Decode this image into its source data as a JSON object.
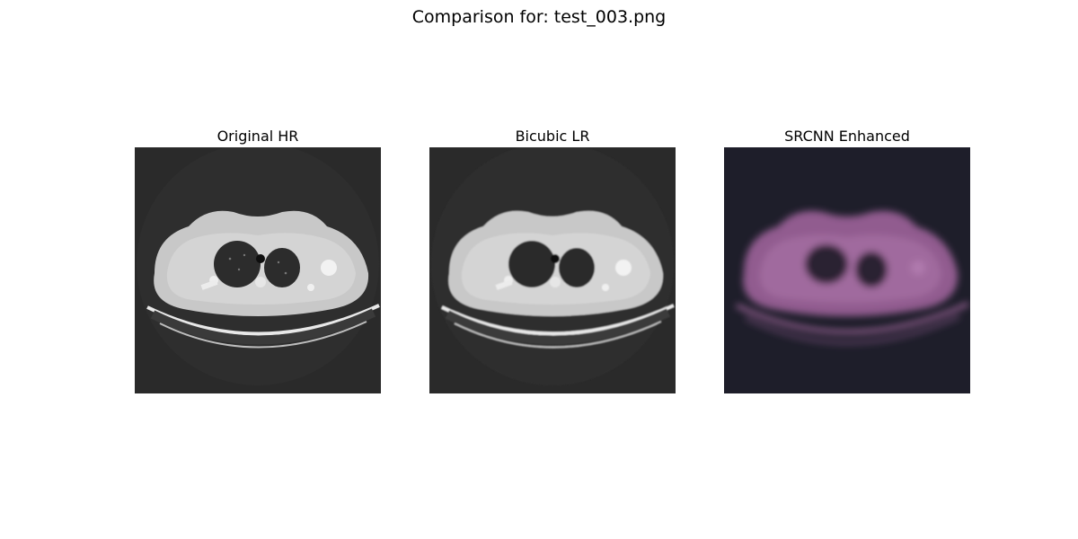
{
  "figure": {
    "title": "Comparison for: test_003.png"
  },
  "panels": [
    {
      "title": "Original HR",
      "image": "ct-chest-axial-slice-sharp",
      "color": "#2a2a2a"
    },
    {
      "title": "Bicubic LR",
      "image": "ct-chest-axial-slice-smoothed",
      "color": "#2a2a2a"
    },
    {
      "title": "SRCNN Enhanced",
      "image": "ct-chest-axial-slice-blurred-magenta-tint",
      "color": "#1e1e2a"
    }
  ]
}
